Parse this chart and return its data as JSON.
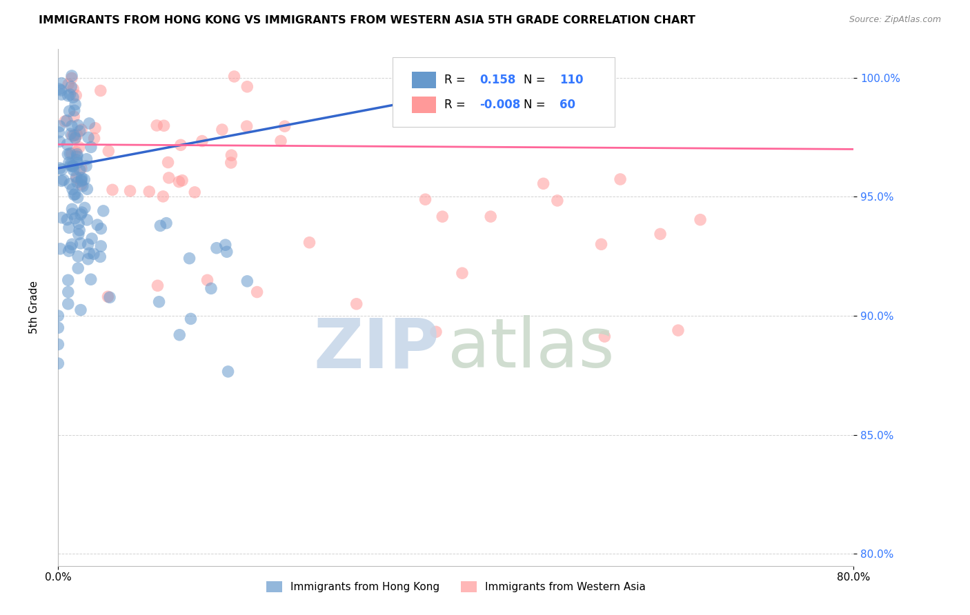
{
  "title": "IMMIGRANTS FROM HONG KONG VS IMMIGRANTS FROM WESTERN ASIA 5TH GRADE CORRELATION CHART",
  "source": "Source: ZipAtlas.com",
  "ylabel": "5th Grade",
  "xlim": [
    0.0,
    0.8
  ],
  "ylim": [
    0.795,
    1.012
  ],
  "y_ticks": [
    0.8,
    0.85,
    0.9,
    0.95,
    1.0
  ],
  "y_tick_labels": [
    "80.0%",
    "85.0%",
    "90.0%",
    "95.0%",
    "100.0%"
  ],
  "x_ticks": [
    0.0,
    0.8
  ],
  "x_tick_labels": [
    "0.0%",
    "80.0%"
  ],
  "hk_R": 0.158,
  "hk_N": 110,
  "wa_R": -0.008,
  "wa_N": 60,
  "hk_color": "#6699CC",
  "wa_color": "#FF9999",
  "hk_line_color": "#3366CC",
  "wa_line_color": "#FF6699",
  "blue_text": "#3377FF",
  "hk_line_x0": 0.0,
  "hk_line_y0": 0.962,
  "hk_line_x1": 0.52,
  "hk_line_y1": 1.003,
  "wa_line_x0": 0.0,
  "wa_line_x1": 0.8,
  "wa_line_y0": 0.972,
  "wa_line_y1": 0.97
}
